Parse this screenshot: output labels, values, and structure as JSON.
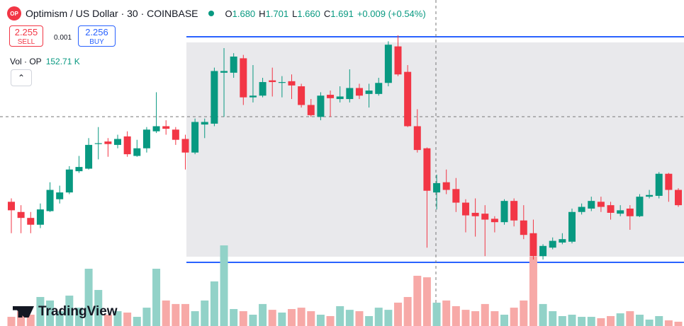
{
  "header": {
    "symbol_icon": "OP",
    "title": "Optimism / US Dollar · 30 · COINBASE",
    "ohlc": [
      {
        "label": "O",
        "value": "1.680"
      },
      {
        "label": "H",
        "value": "1.701"
      },
      {
        "label": "L",
        "value": "1.660"
      },
      {
        "label": "C",
        "value": "1.691"
      }
    ],
    "change": "+0.009 (+0.54%)"
  },
  "trade": {
    "sell_price": "2.255",
    "sell_label": "SELL",
    "spread": "0.001",
    "buy_price": "2.256",
    "buy_label": "BUY"
  },
  "volume_legend": {
    "label": "Vol · OP",
    "value": "152.71 K"
  },
  "logo": "TradingView",
  "chart_data": {
    "type": "candlestick",
    "up_color": "#089981",
    "down_color": "#f23645",
    "volume_up_color": "#92d2c8",
    "volume_down_color": "#f7a9a7",
    "open": [
      1.669,
      1.657,
      1.65,
      1.642,
      1.658,
      1.672,
      1.68,
      1.705,
      1.708,
      1.737,
      1.74,
      1.736,
      1.746,
      1.723,
      1.732,
      1.752,
      1.758,
      1.754,
      1.743,
      1.727,
      1.76,
      1.761,
      1.821,
      1.821,
      1.838,
      1.792,
      1.794,
      1.812,
      1.809,
      1.811,
      1.805,
      1.783,
      1.769,
      1.795,
      1.79,
      1.79,
      1.803,
      1.796,
      1.796,
      1.809,
      1.852,
      1.822,
      1.758,
      1.732,
      1.68,
      1.692,
      1.684,
      1.668,
      1.656,
      1.655,
      1.649,
      1.645,
      1.67,
      1.647,
      1.632,
      1.605,
      1.615,
      1.621,
      1.622,
      1.657,
      1.661,
      1.669,
      1.665,
      1.655,
      1.661,
      1.652,
      1.675,
      1.676,
      1.702,
      1.683
    ],
    "high": [
      1.673,
      1.665,
      1.657,
      1.667,
      1.692,
      1.688,
      1.711,
      1.723,
      1.744,
      1.757,
      1.744,
      1.748,
      1.752,
      1.742,
      1.757,
      1.798,
      1.765,
      1.757,
      1.748,
      1.767,
      1.767,
      1.827,
      1.85,
      1.844,
      1.842,
      1.83,
      1.815,
      1.827,
      1.817,
      1.819,
      1.808,
      1.79,
      1.798,
      1.8,
      1.805,
      1.825,
      1.808,
      1.808,
      1.815,
      1.858,
      1.865,
      1.83,
      1.778,
      1.733,
      1.701,
      1.707,
      1.697,
      1.672,
      1.673,
      1.665,
      1.652,
      1.672,
      1.673,
      1.665,
      1.648,
      1.619,
      1.627,
      1.632,
      1.661,
      1.667,
      1.675,
      1.675,
      1.669,
      1.665,
      1.665,
      1.678,
      1.683,
      1.704,
      1.703,
      1.685
    ],
    "low": [
      1.632,
      1.632,
      1.632,
      1.638,
      1.657,
      1.667,
      1.678,
      1.703,
      1.707,
      1.719,
      1.722,
      1.732,
      1.722,
      1.722,
      1.727,
      1.75,
      1.748,
      1.736,
      1.707,
      1.725,
      1.744,
      1.758,
      1.769,
      1.815,
      1.783,
      1.786,
      1.792,
      1.793,
      1.792,
      1.79,
      1.78,
      1.769,
      1.765,
      1.769,
      1.786,
      1.786,
      1.79,
      1.78,
      1.794,
      1.805,
      1.817,
      1.757,
      1.727,
      1.615,
      1.66,
      1.678,
      1.657,
      1.633,
      1.628,
      1.605,
      1.633,
      1.642,
      1.64,
      1.625,
      1.601,
      1.601,
      1.613,
      1.619,
      1.62,
      1.654,
      1.658,
      1.657,
      1.648,
      1.652,
      1.636,
      1.651,
      1.673,
      1.673,
      1.669,
      1.663
    ],
    "close": [
      1.659,
      1.65,
      1.642,
      1.66,
      1.683,
      1.68,
      1.707,
      1.71,
      1.736,
      1.738,
      1.737,
      1.743,
      1.725,
      1.732,
      1.754,
      1.758,
      1.755,
      1.742,
      1.727,
      1.763,
      1.763,
      1.823,
      1.823,
      1.84,
      1.792,
      1.794,
      1.81,
      1.81,
      1.81,
      1.806,
      1.783,
      1.771,
      1.794,
      1.791,
      1.793,
      1.803,
      1.794,
      1.8,
      1.809,
      1.854,
      1.819,
      1.758,
      1.73,
      1.682,
      1.691,
      1.683,
      1.668,
      1.653,
      1.652,
      1.648,
      1.645,
      1.67,
      1.647,
      1.63,
      1.605,
      1.617,
      1.623,
      1.625,
      1.657,
      1.663,
      1.67,
      1.663,
      1.656,
      1.659,
      1.652,
      1.675,
      1.677,
      1.702,
      1.683,
      1.665
    ],
    "volume": [
      60,
      97,
      74,
      190,
      167,
      97,
      199,
      120,
      375,
      236,
      74,
      97,
      88,
      60,
      120,
      375,
      167,
      144,
      144,
      97,
      167,
      292,
      528,
      111,
      97,
      74,
      144,
      106,
      88,
      111,
      120,
      97,
      74,
      65,
      130,
      106,
      97,
      65,
      120,
      106,
      153,
      190,
      329,
      319,
      152.71,
      167,
      130,
      106,
      97,
      144,
      97,
      74,
      120,
      167,
      454,
      144,
      97,
      65,
      74,
      60,
      60,
      51,
      65,
      83,
      97,
      74,
      42,
      65,
      37,
      28
    ]
  }
}
